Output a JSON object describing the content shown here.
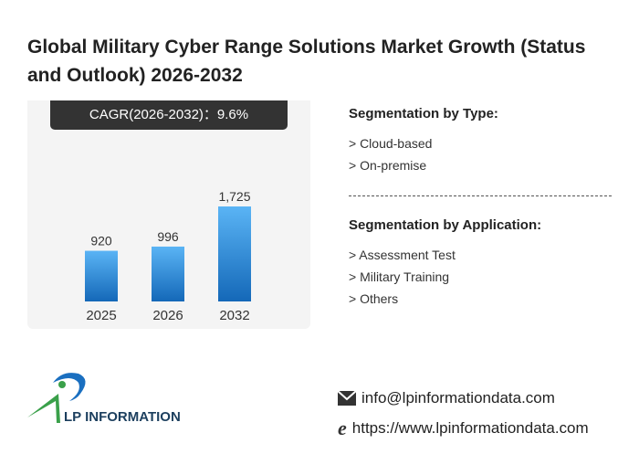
{
  "title": "Global Military Cyber Range Solutions Market Growth (Status and Outlook) 2026-2032",
  "cagr_label": "CAGR(2026-2032)：9.6%",
  "chart_data": {
    "type": "bar",
    "categories": [
      "2025",
      "2026",
      "2032"
    ],
    "values": [
      920,
      996,
      1725
    ],
    "value_labels": [
      "920",
      "996",
      "1,725"
    ],
    "colors": {
      "top": "#5ab4f5",
      "bottom": "#1468b8"
    },
    "ylim": [
      0,
      1725
    ]
  },
  "segmentation": {
    "type_title": "Segmentation by Type:",
    "types": [
      "> Cloud-based",
      "> On-premise"
    ],
    "application_title": "Segmentation by Application:",
    "applications": [
      "> Assessment Test",
      "> Military Training",
      "> Others"
    ]
  },
  "logo": {
    "text": "LP INFORMATION"
  },
  "contact": {
    "email": "info@lpinformationdata.com",
    "website": "https://www.lpinformationdata.com",
    "email_icon": "envelope-icon",
    "web_icon": "internet-explorer-icon"
  }
}
